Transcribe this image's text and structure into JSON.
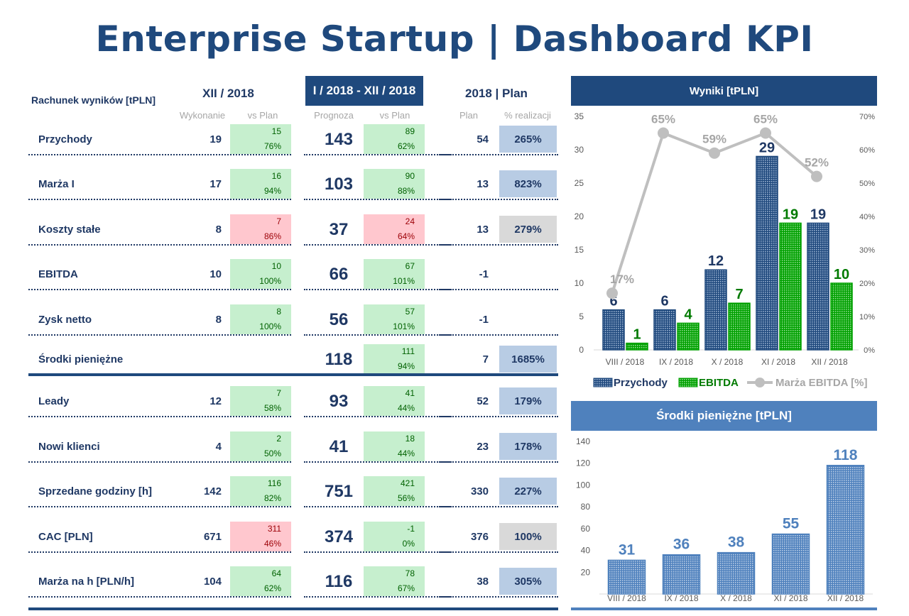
{
  "title": "Enterprise Startup | Dashboard KPI",
  "table": {
    "row_header": "Rachunek wyników [tPLN]",
    "period1": "XII / 2018",
    "period2": "I / 2018 - XII / 2018",
    "period3": "2018 | Plan",
    "sub": {
      "wykonanie": "Wykonanie",
      "vs_plan1": "vs Plan",
      "prognoza": "Prognoza",
      "vs_plan2": "vs Plan",
      "plan": "Plan",
      "realizacja": "% realizacji"
    },
    "rows": [
      {
        "label": "Przychody",
        "m": "19",
        "mv": "15",
        "mp": "76%",
        "mc": "g",
        "y": "143",
        "yv": "89",
        "yp": "62%",
        "yc": "g",
        "plan": "54",
        "real": "265%",
        "rc": "b"
      },
      {
        "label": "Marża I",
        "m": "17",
        "mv": "16",
        "mp": "94%",
        "mc": "g",
        "y": "103",
        "yv": "90",
        "yp": "88%",
        "yc": "g",
        "plan": "13",
        "real": "823%",
        "rc": "b"
      },
      {
        "label": "Koszty stałe",
        "m": "8",
        "mv": "7",
        "mp": "86%",
        "mc": "r",
        "y": "37",
        "yv": "24",
        "yp": "64%",
        "yc": "r",
        "plan": "13",
        "real": "279%",
        "rc": "gr"
      },
      {
        "label": "EBITDA",
        "m": "10",
        "mv": "10",
        "mp": "100%",
        "mc": "g",
        "y": "66",
        "yv": "67",
        "yp": "101%",
        "yc": "g",
        "plan": "-1",
        "real": "",
        "rc": ""
      },
      {
        "label": "Zysk netto",
        "m": "8",
        "mv": "8",
        "mp": "100%",
        "mc": "g",
        "y": "56",
        "yv": "57",
        "yp": "101%",
        "yc": "g",
        "plan": "-1",
        "real": "",
        "rc": ""
      },
      {
        "label": "Środki pieniężne",
        "m": "",
        "mv": "",
        "mp": "",
        "mc": "",
        "y": "118",
        "yv": "111",
        "yp": "94%",
        "yc": "g",
        "plan": "7",
        "real": "1685%",
        "rc": "b"
      },
      {
        "label": "Leady",
        "m": "12",
        "mv": "7",
        "mp": "58%",
        "mc": "g",
        "y": "93",
        "yv": "41",
        "yp": "44%",
        "yc": "g",
        "plan": "52",
        "real": "179%",
        "rc": "b"
      },
      {
        "label": "Nowi klienci",
        "m": "4",
        "mv": "2",
        "mp": "50%",
        "mc": "g",
        "y": "41",
        "yv": "18",
        "yp": "44%",
        "yc": "g",
        "plan": "23",
        "real": "178%",
        "rc": "b"
      },
      {
        "label": "Sprzedane godziny [h]",
        "m": "142",
        "mv": "116",
        "mp": "82%",
        "mc": "g",
        "y": "751",
        "yv": "421",
        "yp": "56%",
        "yc": "g",
        "plan": "330",
        "real": "227%",
        "rc": "b"
      },
      {
        "label": "CAC [PLN]",
        "m": "671",
        "mv": "311",
        "mp": "46%",
        "mc": "r",
        "y": "374",
        "yv": "-1",
        "yp": "0%",
        "yc": "g",
        "plan": "376",
        "real": "100%",
        "rc": "gr"
      },
      {
        "label": "Marża na h [PLN/h]",
        "m": "104",
        "mv": "64",
        "mp": "62%",
        "mc": "g",
        "y": "116",
        "yv": "78",
        "yp": "67%",
        "yc": "g",
        "plan": "38",
        "real": "305%",
        "rc": "b"
      }
    ]
  },
  "chart_data": [
    {
      "type": "bar",
      "title": "Wyniki [tPLN]",
      "categories": [
        "VIII / 2018",
        "IX / 2018",
        "X / 2018",
        "XI / 2018",
        "XII / 2018"
      ],
      "series": [
        {
          "name": "Przychody",
          "values": [
            6,
            6,
            12,
            29,
            19
          ],
          "color": "#1f497d"
        },
        {
          "name": "EBITDA",
          "values": [
            1,
            4,
            7,
            19,
            10
          ],
          "color": "#00a000"
        },
        {
          "name": "Marża EBITDA [%]",
          "type": "line",
          "axis": "secondary",
          "values": [
            17,
            65,
            59,
            65,
            52
          ],
          "color": "#bfbfbf"
        }
      ],
      "ylim": [
        0,
        35
      ],
      "yticks": [
        0,
        5,
        10,
        15,
        20,
        25,
        30,
        35
      ],
      "y2lim": [
        0,
        70
      ],
      "y2ticks": [
        "0%",
        "10%",
        "20%",
        "30%",
        "40%",
        "50%",
        "60%",
        "70%"
      ],
      "legend": "bottom"
    },
    {
      "type": "bar",
      "title": "Środki pieniężne [tPLN]",
      "categories": [
        "VIII / 2018",
        "IX / 2018",
        "X / 2018",
        "XI / 2018",
        "XII / 2018"
      ],
      "values": [
        31,
        36,
        38,
        55,
        118
      ],
      "color": "#4f81bd",
      "ylim": [
        0,
        140
      ],
      "yticks": [
        20,
        40,
        60,
        80,
        100,
        120,
        140
      ]
    }
  ]
}
